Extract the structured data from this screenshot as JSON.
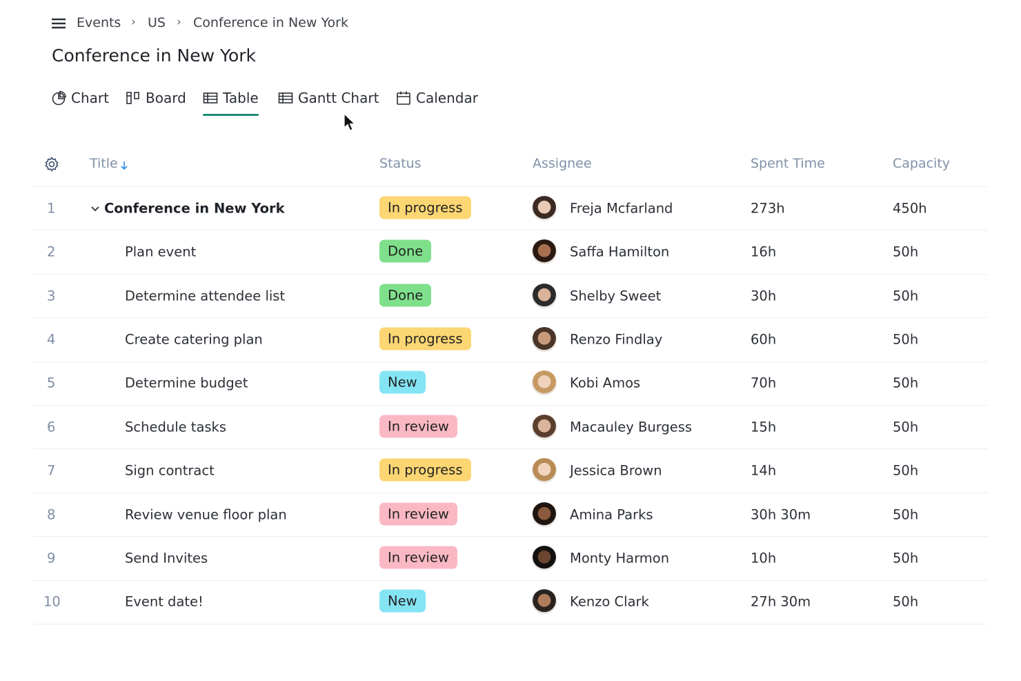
{
  "breadcrumb": [
    "Events",
    "US",
    "Conference in New York"
  ],
  "title": "Conference in New York",
  "tabs": [
    {
      "label": "Chart"
    },
    {
      "label": "Board"
    },
    {
      "label": "Table",
      "active": true
    },
    {
      "label": "Gantt Chart"
    },
    {
      "label": "Calendar"
    }
  ],
  "table": {
    "columns": [
      "Title",
      "Status",
      "Assignee",
      "Spent Time",
      "Capacity"
    ],
    "rows": [
      {
        "number": 1,
        "title": "Conference in New York",
        "level": 0,
        "status": {
          "label": "In progress",
          "color": "#fcd672"
        },
        "assignee": "Freja Mcfarland",
        "spent": "273h",
        "capacity": "450h"
      },
      {
        "number": 2,
        "title": "Plan event",
        "level": 1,
        "status": {
          "label": "Done",
          "color": "#7fe08c"
        },
        "assignee": "Saffa Hamilton",
        "spent": "16h",
        "capacity": "50h"
      },
      {
        "number": 3,
        "title": "Determine attendee list",
        "level": 1,
        "status": {
          "label": "Done",
          "color": "#7fe08c"
        },
        "assignee": "Shelby Sweet",
        "spent": "30h",
        "capacity": "50h"
      },
      {
        "number": 4,
        "title": "Create catering plan",
        "level": 1,
        "status": {
          "label": "In progress",
          "color": "#fcd672"
        },
        "assignee": "Renzo Findlay",
        "spent": "60h",
        "capacity": "50h"
      },
      {
        "number": 5,
        "title": "Determine budget",
        "level": 1,
        "status": {
          "label": "New",
          "color": "#84e4f3"
        },
        "assignee": "Kobi Amos",
        "spent": "70h",
        "capacity": "50h"
      },
      {
        "number": 6,
        "title": "Schedule tasks",
        "level": 1,
        "status": {
          "label": "In review",
          "color": "#fab8c4"
        },
        "assignee": "Macauley Burgess",
        "spent": "15h",
        "capacity": "50h"
      },
      {
        "number": 7,
        "title": "Sign contract",
        "level": 1,
        "status": {
          "label": "In progress",
          "color": "#fcd672"
        },
        "assignee": "Jessica Brown",
        "spent": "14h",
        "capacity": "50h"
      },
      {
        "number": 8,
        "title": "Review venue floor plan",
        "level": 1,
        "status": {
          "label": "In review",
          "color": "#fab8c4"
        },
        "assignee": "Amina Parks",
        "spent": "30h 30m",
        "capacity": "50h"
      },
      {
        "number": 9,
        "title": "Send Invites",
        "level": 1,
        "status": {
          "label": "In review",
          "color": "#fab8c4"
        },
        "assignee": "Monty Harmon",
        "spent": "10h",
        "capacity": "50h"
      },
      {
        "number": 10,
        "title": "Event date!",
        "level": 1,
        "status": {
          "label": "New",
          "color": "#84e4f3"
        },
        "assignee": "Kenzo Clark",
        "spent": "27h 30m",
        "capacity": "50h"
      }
    ]
  }
}
